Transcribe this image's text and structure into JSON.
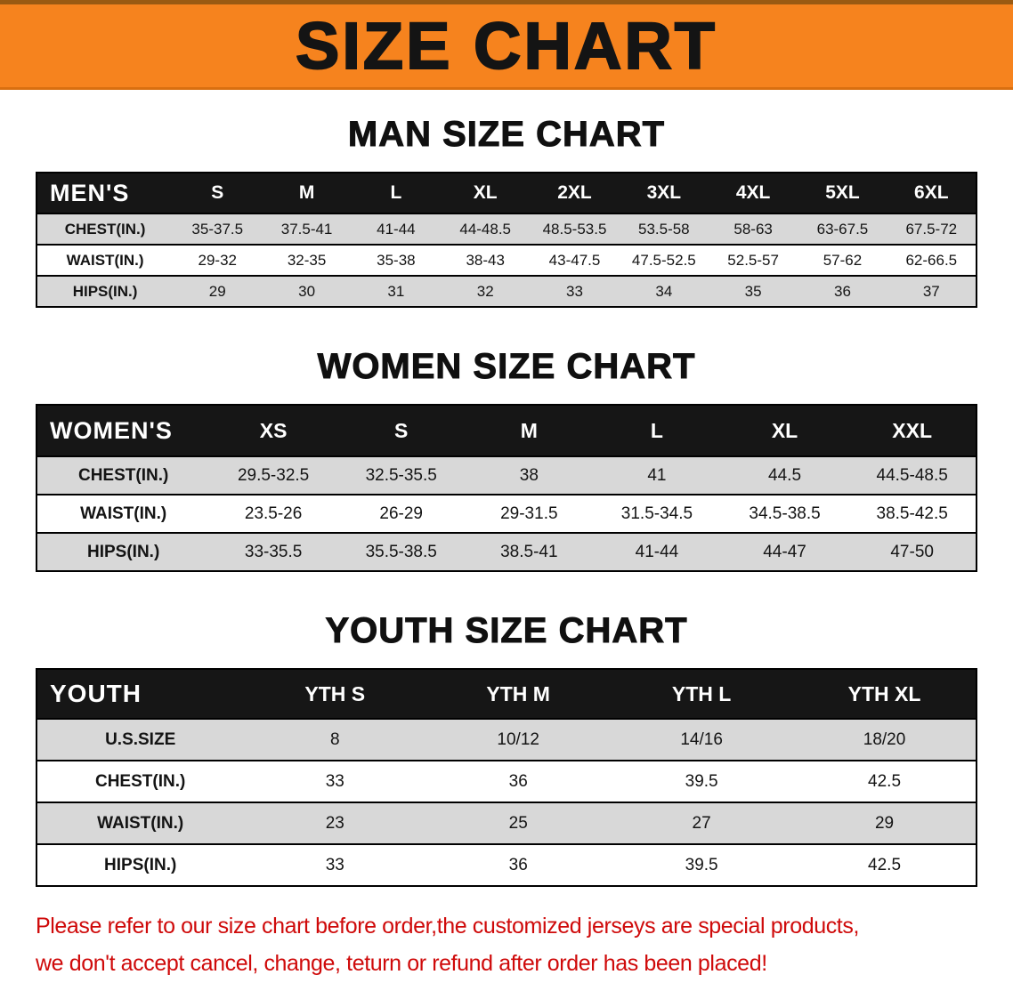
{
  "banner": {
    "title": "SIZE CHART"
  },
  "colors": {
    "banner_orange": "#f6831e",
    "header_black": "#161616",
    "row_gray": "#d8d8d8",
    "disclaimer_red": "#cf0a0a"
  },
  "sections": [
    {
      "heading": "MAN SIZE CHART",
      "table": {
        "label": "MEN'S",
        "columns": [
          "S",
          "M",
          "L",
          "XL",
          "2XL",
          "3XL",
          "4XL",
          "5XL",
          "6XL"
        ],
        "rows": [
          {
            "label": "CHEST(IN.)",
            "values": [
              "35-37.5",
              "37.5-41",
              "41-44",
              "44-48.5",
              "48.5-53.5",
              "53.5-58",
              "58-63",
              "63-67.5",
              "67.5-72"
            ]
          },
          {
            "label": "WAIST(IN.)",
            "values": [
              "29-32",
              "32-35",
              "35-38",
              "38-43",
              "43-47.5",
              "47.5-52.5",
              "52.5-57",
              "57-62",
              "62-66.5"
            ]
          },
          {
            "label": "HIPS(IN.)",
            "values": [
              "29",
              "30",
              "31",
              "32",
              "33",
              "34",
              "35",
              "36",
              "37"
            ]
          }
        ]
      }
    },
    {
      "heading": "WOMEN SIZE CHART",
      "table": {
        "label": "WOMEN'S",
        "columns": [
          "XS",
          "S",
          "M",
          "L",
          "XL",
          "XXL"
        ],
        "rows": [
          {
            "label": "CHEST(IN.)",
            "values": [
              "29.5-32.5",
              "32.5-35.5",
              "38",
              "41",
              "44.5",
              "44.5-48.5"
            ]
          },
          {
            "label": "WAIST(IN.)",
            "values": [
              "23.5-26",
              "26-29",
              "29-31.5",
              "31.5-34.5",
              "34.5-38.5",
              "38.5-42.5"
            ]
          },
          {
            "label": "HIPS(IN.)",
            "values": [
              "33-35.5",
              "35.5-38.5",
              "38.5-41",
              "41-44",
              "44-47",
              "47-50"
            ]
          }
        ]
      }
    },
    {
      "heading": "YOUTH SIZE CHART",
      "table": {
        "label": "YOUTH",
        "columns": [
          "YTH S",
          "YTH M",
          "YTH L",
          "YTH XL"
        ],
        "rows": [
          {
            "label": "U.S.SIZE",
            "values": [
              "8",
              "10/12",
              "14/16",
              "18/20"
            ]
          },
          {
            "label": "CHEST(IN.)",
            "values": [
              "33",
              "36",
              "39.5",
              "42.5"
            ]
          },
          {
            "label": "WAIST(IN.)",
            "values": [
              "23",
              "25",
              "27",
              "29"
            ]
          },
          {
            "label": "HIPS(IN.)",
            "values": [
              "33",
              "36",
              "39.5",
              "42.5"
            ]
          }
        ]
      }
    }
  ],
  "footer": {
    "lines": [
      "Please refer to our size chart before order,the customized jerseys are special products,",
      "we don't accept cancel, change, teturn or refund after order has been placed!"
    ]
  }
}
